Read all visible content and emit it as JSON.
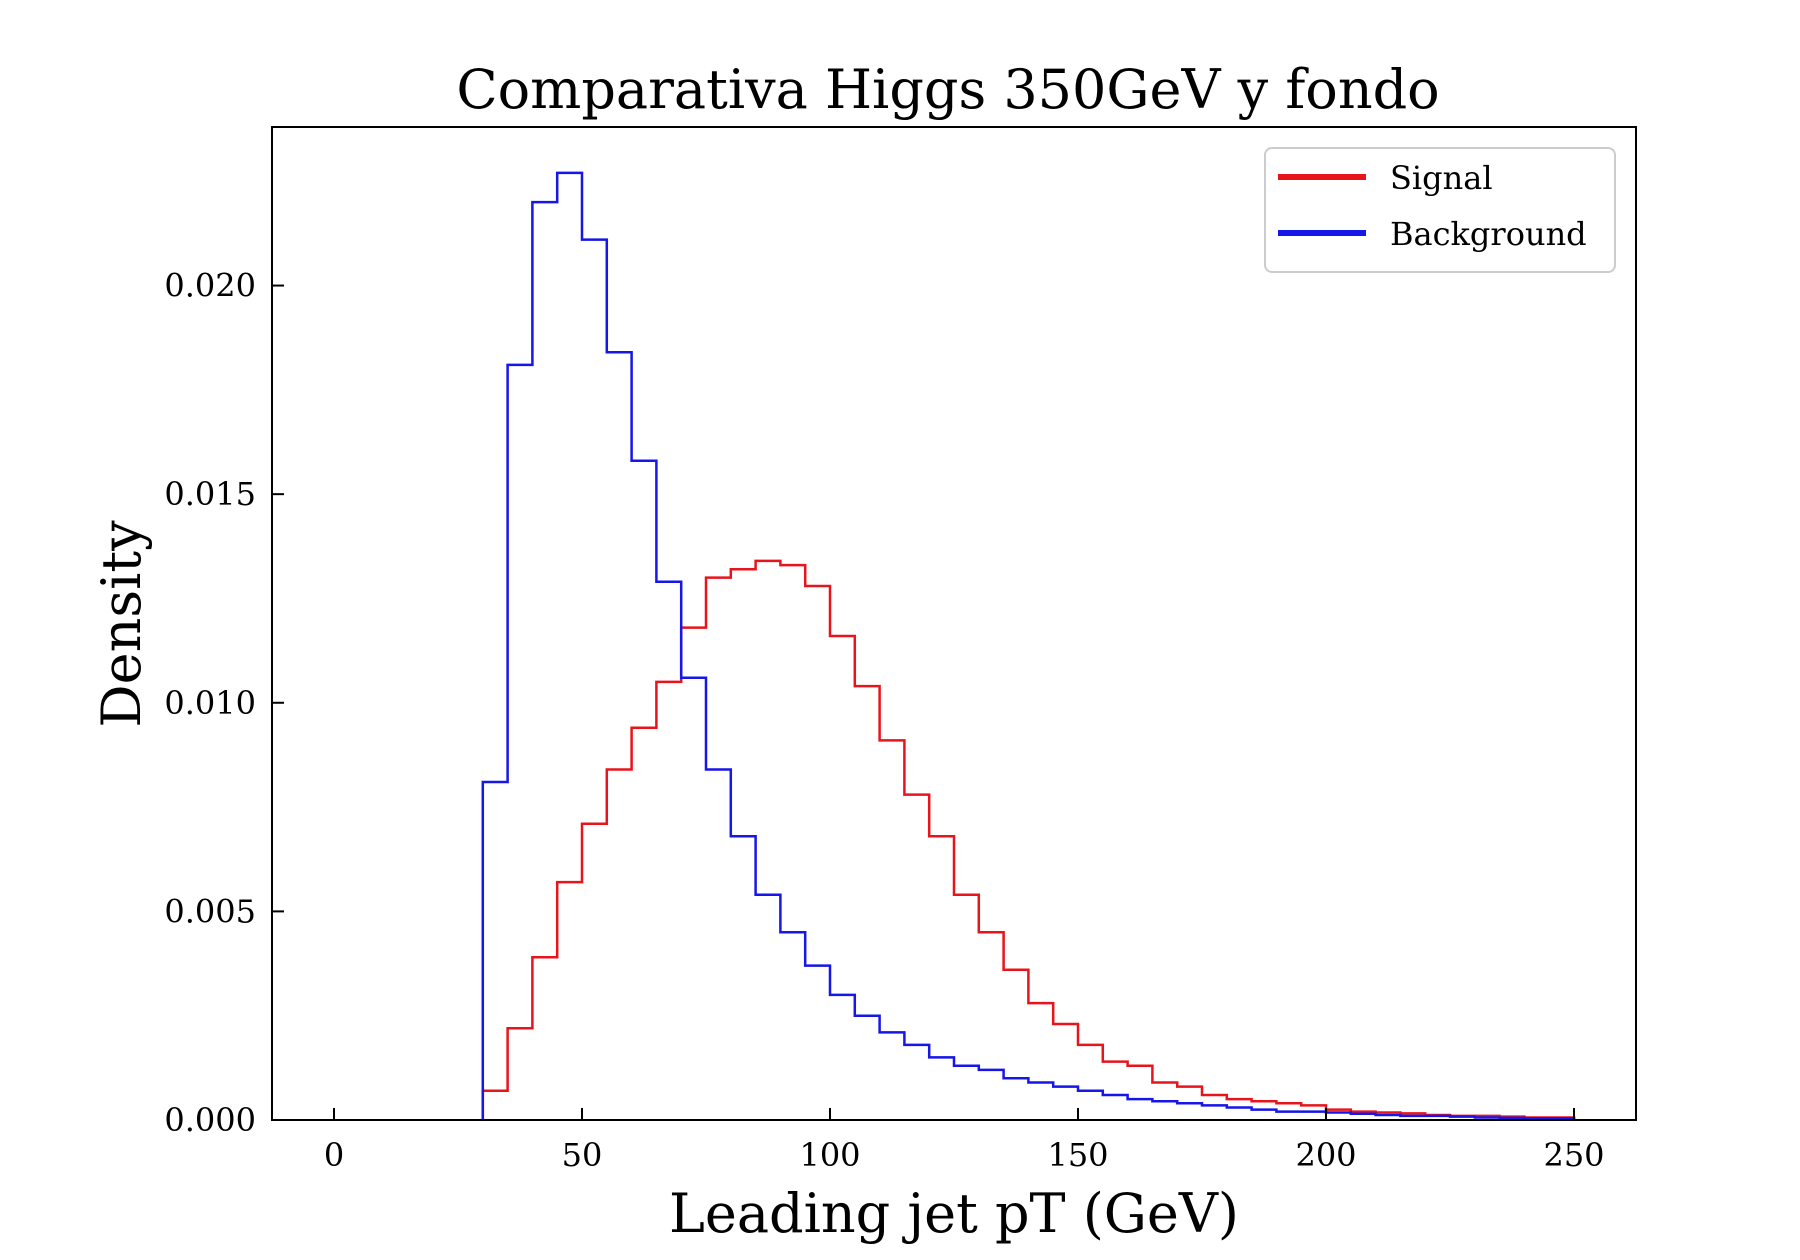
{
  "chart_data": {
    "type": "histogram",
    "title": "Comparativa Higgs 350GeV y fondo",
    "xlabel": "Leading jet pT (GeV)",
    "ylabel": "Density",
    "xlim": [
      -12.5,
      262.5
    ],
    "ylim": [
      0,
      0.0238
    ],
    "xticks": [
      0,
      50,
      100,
      150,
      200,
      250
    ],
    "xtick_labels": [
      "0",
      "50",
      "100",
      "150",
      "200",
      "250"
    ],
    "yticks": [
      0,
      0.005,
      0.01,
      0.015,
      0.02
    ],
    "ytick_labels": [
      "0.000",
      "0.005",
      "0.010",
      "0.015",
      "0.020"
    ],
    "legend_position": "top-right",
    "grid": false,
    "bins": [
      30,
      35,
      40,
      45,
      50,
      55,
      60,
      65,
      70,
      75,
      80,
      85,
      90,
      95,
      100,
      105,
      110,
      115,
      120,
      125,
      130,
      135,
      140,
      145,
      150,
      155,
      160,
      165,
      170,
      175,
      180,
      185,
      190,
      195,
      200,
      205,
      210,
      215,
      220,
      225,
      230,
      235,
      240,
      245,
      250
    ],
    "series": [
      {
        "name": "Signal",
        "color": "#e8141c",
        "values": [
          0.0007,
          0.0022,
          0.0039,
          0.0057,
          0.0071,
          0.0084,
          0.0094,
          0.0105,
          0.0118,
          0.013,
          0.0132,
          0.0134,
          0.0133,
          0.0128,
          0.0116,
          0.0104,
          0.0091,
          0.0078,
          0.0068,
          0.0054,
          0.0045,
          0.0036,
          0.0028,
          0.0023,
          0.0018,
          0.0014,
          0.0013,
          0.0009,
          0.0008,
          0.0006,
          0.0005,
          0.00045,
          0.0004,
          0.00035,
          0.00025,
          0.0002,
          0.00018,
          0.00016,
          0.00012,
          0.0001,
          0.0001,
          8e-05,
          6e-05,
          6e-05
        ]
      },
      {
        "name": "Background",
        "color": "#1616e8",
        "values": [
          0.0081,
          0.0181,
          0.022,
          0.0227,
          0.0211,
          0.0184,
          0.0158,
          0.0129,
          0.0106,
          0.0084,
          0.0068,
          0.0054,
          0.0045,
          0.0037,
          0.003,
          0.0025,
          0.0021,
          0.0018,
          0.0015,
          0.0013,
          0.0012,
          0.001,
          0.0009,
          0.0008,
          0.0007,
          0.0006,
          0.0005,
          0.00045,
          0.0004,
          0.00035,
          0.0003,
          0.00025,
          0.0002,
          0.0002,
          0.00018,
          0.00015,
          0.00012,
          0.0001,
          0.0001,
          8e-05,
          6e-05,
          5e-05,
          4e-05,
          4e-05
        ]
      }
    ]
  }
}
